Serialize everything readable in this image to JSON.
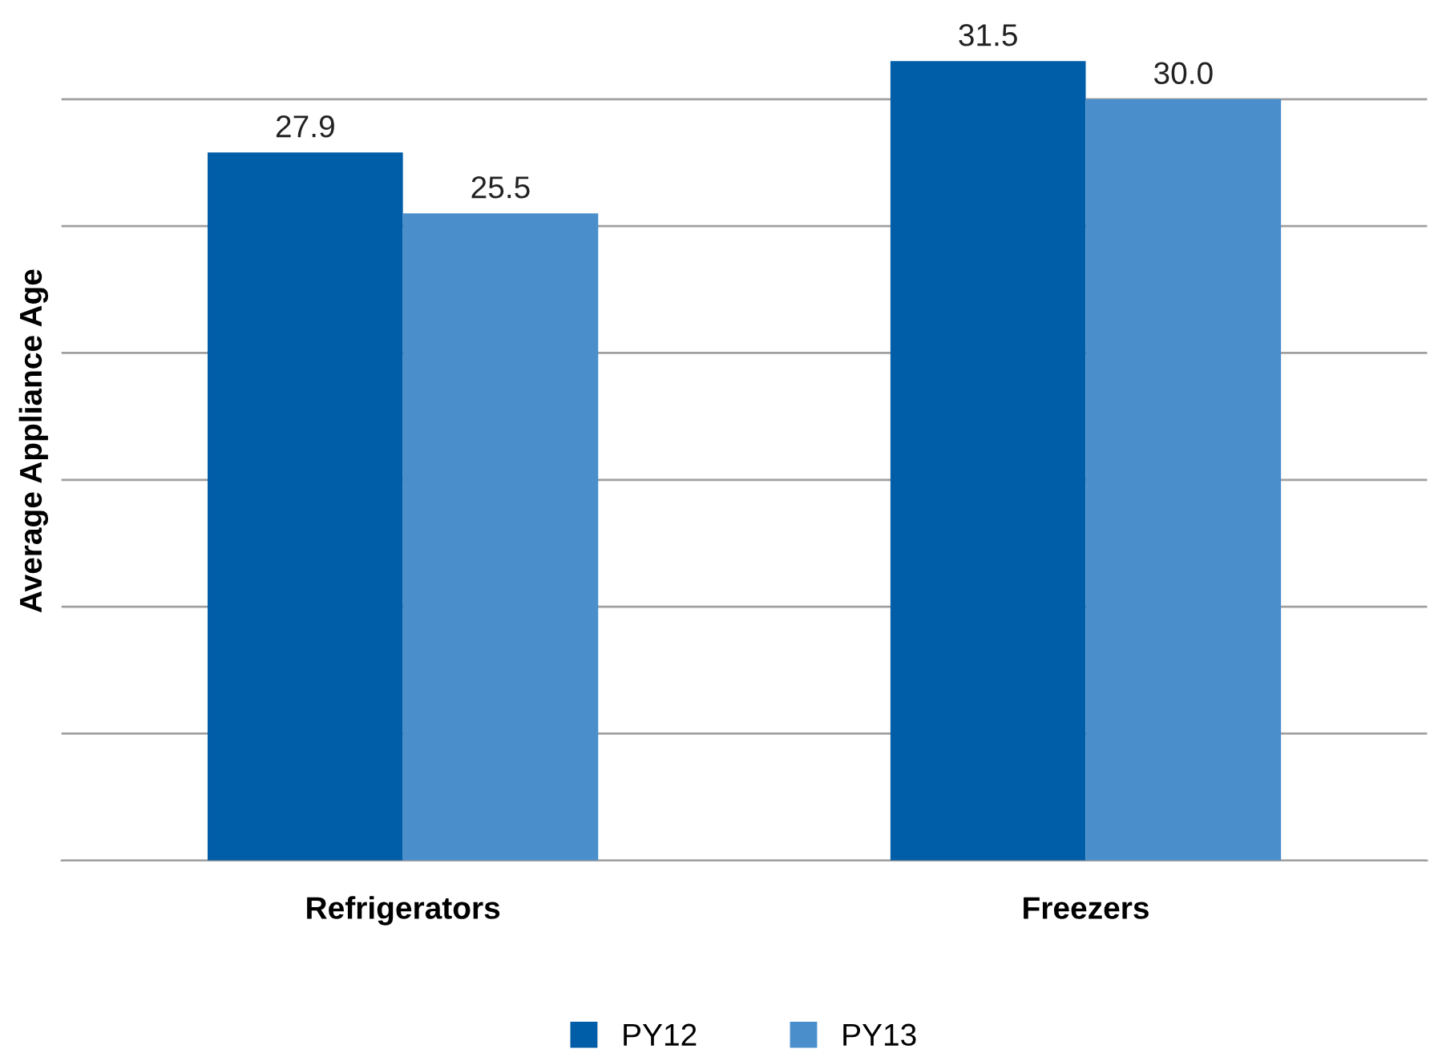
{
  "chart_data": {
    "type": "bar",
    "ylabel": "Average Appliance Age",
    "categories": [
      "Refrigerators",
      "Freezers"
    ],
    "series": [
      {
        "name": "PY12",
        "color": "#005da8",
        "values": [
          27.9,
          31.5
        ],
        "value_labels": [
          "27.9",
          "31.5"
        ]
      },
      {
        "name": "PY13",
        "color": "#4a8fcc",
        "values": [
          25.5,
          30.0
        ],
        "value_labels": [
          "25.5",
          "30.0"
        ]
      }
    ],
    "tick_labels": "x",
    "grid": "y",
    "legend": "bottom"
  }
}
